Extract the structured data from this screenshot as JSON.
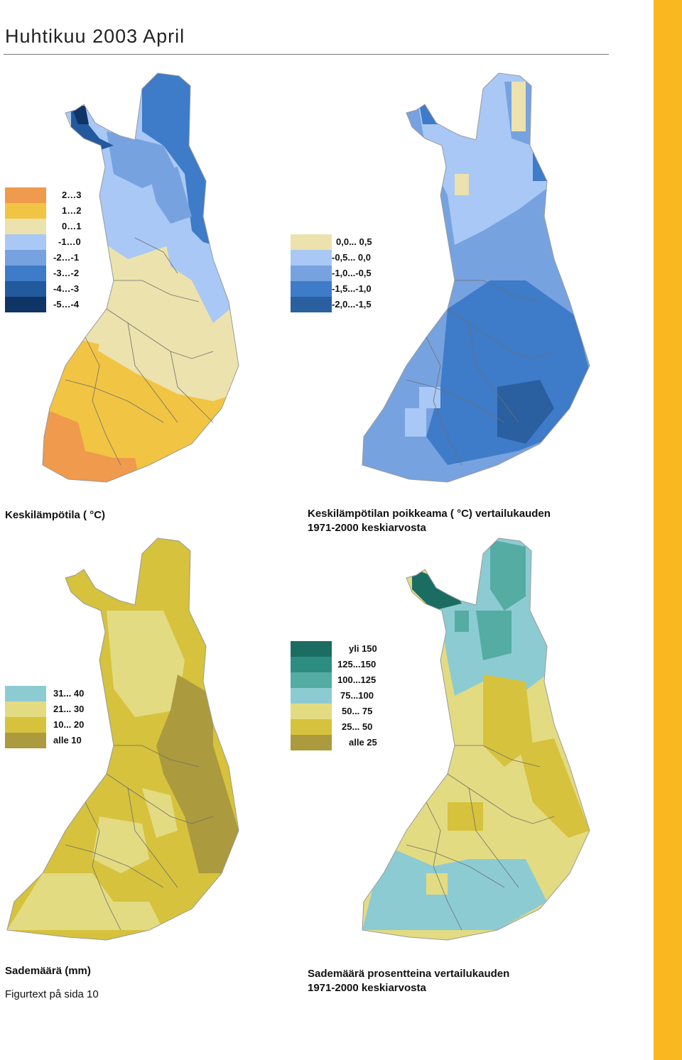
{
  "page": {
    "title": "Huhtikuu 2003 April",
    "accent_color": "#f9b81f"
  },
  "maps": {
    "mean_temperature": {
      "caption": "Keskilämpötila ( °C)",
      "legend": [
        {
          "label": "2…3",
          "color": "#ef9a4c"
        },
        {
          "label": "1…2",
          "color": "#f2c443"
        },
        {
          "label": "0…1",
          "color": "#ece2ad"
        },
        {
          "label": "-1…0",
          "color": "#a9c8f5"
        },
        {
          "label": "-2…-1",
          "color": "#77a2e0"
        },
        {
          "label": "-3…-2",
          "color": "#3e7bc8"
        },
        {
          "label": "-4…-3",
          "color": "#235a9e"
        },
        {
          "label": "-5…-4",
          "color": "#0f3466"
        }
      ]
    },
    "temperature_anomaly": {
      "caption_line1": "Keskilämpötilan poikkeama ( °C) vertailukauden",
      "caption_line2": "1971-2000 keskiarvosta",
      "legend": [
        {
          "label": "0,0... 0,5",
          "color": "#ece2ad"
        },
        {
          "label": "-0,5... 0,0",
          "color": "#a9c8f5"
        },
        {
          "label": "-1,0...-0,5",
          "color": "#77a2e0"
        },
        {
          "label": "-1,5...-1,0",
          "color": "#3e7bc8"
        },
        {
          "label": "-2,0...-1,5",
          "color": "#2a5fa0"
        }
      ]
    },
    "precipitation": {
      "caption": "Sademäärä (mm)",
      "note": "Figurtext på sida 10",
      "legend": [
        {
          "label": "31... 40",
          "color": "#8dcbd3"
        },
        {
          "label": "21... 30",
          "color": "#e3db82"
        },
        {
          "label": "10... 20",
          "color": "#d6c23c"
        },
        {
          "label": "alle 10",
          "color": "#ab9a3e"
        }
      ]
    },
    "precipitation_percent": {
      "caption_line1": "Sademäärä prosentteina vertailukauden",
      "caption_line2": "1971-2000 keskiarvosta",
      "legend": [
        {
          "label": "yli 150",
          "color": "#1b6d62"
        },
        {
          "label": "125...150",
          "color": "#2c8d80"
        },
        {
          "label": "100...125",
          "color": "#54aca3"
        },
        {
          "label": "75...100",
          "color": "#8dcbd3"
        },
        {
          "label": "50... 75",
          "color": "#e3db82"
        },
        {
          "label": "25... 50",
          "color": "#d6c23c"
        },
        {
          "label": "alle 25",
          "color": "#ab9a3e"
        }
      ]
    }
  }
}
